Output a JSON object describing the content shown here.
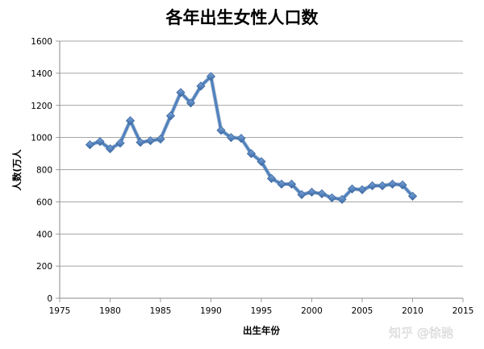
{
  "chart_data": {
    "type": "line",
    "title": "各年出生女性人口数",
    "xlabel": "出生年份",
    "ylabel": "人数(万人",
    "xlim": [
      1975,
      2015
    ],
    "ylim": [
      0,
      1600
    ],
    "xticks": [
      1975,
      1980,
      1985,
      1990,
      1995,
      2000,
      2005,
      2010,
      2015
    ],
    "yticks": [
      0,
      200,
      400,
      600,
      800,
      1000,
      1200,
      1400,
      1600
    ],
    "grid": "horizontal",
    "legend": "none",
    "series": [
      {
        "color": "#4f81bd",
        "marker": "diamond",
        "x": [
          1978,
          1979,
          1980,
          1981,
          1982,
          1983,
          1984,
          1985,
          1986,
          1987,
          1988,
          1989,
          1990,
          1991,
          1992,
          1993,
          1994,
          1995,
          1996,
          1997,
          1998,
          1999,
          2000,
          2001,
          2002,
          2003,
          2004,
          2005,
          2006,
          2007,
          2008,
          2009,
          2010
        ],
        "values": [
          955,
          975,
          930,
          965,
          1105,
          970,
          980,
          990,
          1135,
          1280,
          1215,
          1320,
          1380,
          1045,
          1000,
          995,
          900,
          850,
          745,
          710,
          710,
          645,
          660,
          650,
          625,
          615,
          680,
          675,
          700,
          700,
          710,
          705,
          635
        ]
      }
    ]
  },
  "watermark": "知乎 @徐驰"
}
